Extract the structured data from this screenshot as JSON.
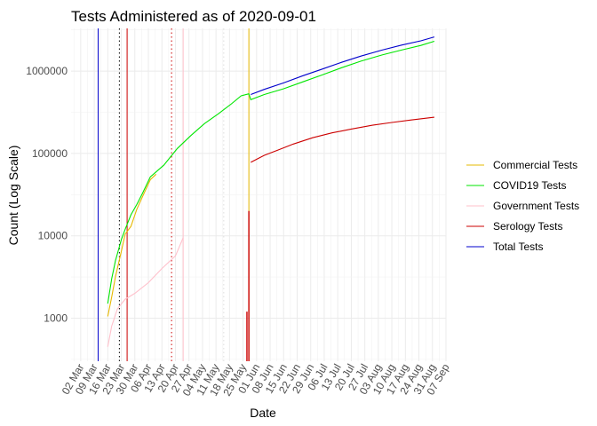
{
  "chart_data": {
    "type": "line",
    "title": "Tests Administered as of 2020-09-01",
    "xlabel": "Date",
    "ylabel": "Count (Log Scale)",
    "y_scale": "log",
    "ylim": [
      300,
      3300000
    ],
    "xlim": [
      "2020-02-26",
      "2020-09-07"
    ],
    "grid": true,
    "legend_position": "right",
    "y_ticks": [
      {
        "value": 1000,
        "label": "1000"
      },
      {
        "value": 10000,
        "label": "10000"
      },
      {
        "value": 100000,
        "label": "100000"
      },
      {
        "value": 1000000,
        "label": "1000000"
      }
    ],
    "x_ticks": [
      {
        "date": "2020-03-02",
        "label": "02 Mar"
      },
      {
        "date": "2020-03-09",
        "label": "09 Mar"
      },
      {
        "date": "2020-03-16",
        "label": "16 Mar"
      },
      {
        "date": "2020-03-23",
        "label": "23 Mar"
      },
      {
        "date": "2020-03-30",
        "label": "30 Mar"
      },
      {
        "date": "2020-04-06",
        "label": "06 Apr"
      },
      {
        "date": "2020-04-13",
        "label": "13 Apr"
      },
      {
        "date": "2020-04-20",
        "label": "20 Apr"
      },
      {
        "date": "2020-04-27",
        "label": "27 Apr"
      },
      {
        "date": "2020-05-04",
        "label": "04 May"
      },
      {
        "date": "2020-05-11",
        "label": "11 May"
      },
      {
        "date": "2020-05-18",
        "label": "18 May"
      },
      {
        "date": "2020-05-25",
        "label": "25 May"
      },
      {
        "date": "2020-06-01",
        "label": "01 Jun"
      },
      {
        "date": "2020-06-08",
        "label": "08 Jun"
      },
      {
        "date": "2020-06-15",
        "label": "15 Jun"
      },
      {
        "date": "2020-06-22",
        "label": "22 Jun"
      },
      {
        "date": "2020-06-29",
        "label": "29 Jun"
      },
      {
        "date": "2020-07-06",
        "label": "06 Jul"
      },
      {
        "date": "2020-07-13",
        "label": "13 Jul"
      },
      {
        "date": "2020-07-20",
        "label": "20 Jul"
      },
      {
        "date": "2020-07-27",
        "label": "27 Jul"
      },
      {
        "date": "2020-08-03",
        "label": "03 Aug"
      },
      {
        "date": "2020-08-10",
        "label": "10 Aug"
      },
      {
        "date": "2020-08-17",
        "label": "17 Aug"
      },
      {
        "date": "2020-08-24",
        "label": "24 Aug"
      },
      {
        "date": "2020-08-31",
        "label": "31 Aug"
      },
      {
        "date": "2020-09-07",
        "label": "07 Sep"
      }
    ],
    "series": [
      {
        "name": "Commercial Tests",
        "color": "#e6b800",
        "x": [
          "2020-03-16",
          "2020-03-18",
          "2020-03-20",
          "2020-03-23",
          "2020-03-25",
          "2020-03-28",
          "2020-03-31",
          "2020-04-03",
          "2020-04-07",
          "2020-04-10"
        ],
        "y": [
          1050,
          1800,
          3200,
          6500,
          10500,
          13000,
          21000,
          30000,
          48000,
          56000
        ]
      },
      {
        "name": "COVID19 Tests",
        "color": "#00e600",
        "x": [
          "2020-03-16",
          "2020-03-18",
          "2020-03-20",
          "2020-03-23",
          "2020-03-25",
          "2020-03-28",
          "2020-03-31",
          "2020-04-03",
          "2020-04-07",
          "2020-04-14",
          "2020-04-21",
          "2020-04-28",
          "2020-05-05",
          "2020-05-12",
          "2020-05-19",
          "2020-05-24",
          "2020-05-28",
          "2020-05-29",
          "2020-06-05",
          "2020-06-15",
          "2020-06-25",
          "2020-07-05",
          "2020-07-15",
          "2020-07-25",
          "2020-08-05",
          "2020-08-15",
          "2020-08-25",
          "2020-09-01"
        ],
        "y": [
          1500,
          3000,
          5000,
          9000,
          12000,
          18000,
          24000,
          33000,
          52000,
          72000,
          115000,
          165000,
          230000,
          300000,
          400000,
          500000,
          530000,
          450000,
          520000,
          610000,
          740000,
          900000,
          1100000,
          1320000,
          1570000,
          1800000,
          2050000,
          2300000
        ]
      },
      {
        "name": "Government Tests",
        "color": "#ffc0cb",
        "x": [
          "2020-03-16",
          "2020-03-18",
          "2020-03-21",
          "2020-03-25",
          "2020-03-30",
          "2020-04-06",
          "2020-04-13",
          "2020-04-20",
          "2020-04-24"
        ],
        "y": [
          450,
          800,
          1300,
          1700,
          2000,
          2700,
          4000,
          5700,
          9500
        ]
      },
      {
        "name": "Serology Tests",
        "color": "#cc0000",
        "x": [
          "2020-05-29",
          "2020-06-01",
          "2020-06-05",
          "2020-06-12",
          "2020-06-20",
          "2020-06-30",
          "2020-07-10",
          "2020-07-20",
          "2020-07-31",
          "2020-08-10",
          "2020-08-20",
          "2020-09-01"
        ],
        "y": [
          78000,
          85000,
          95000,
          110000,
          130000,
          155000,
          178000,
          198000,
          220000,
          238000,
          255000,
          275000
        ]
      },
      {
        "name": "Total Tests",
        "color": "#0000cc",
        "x": [
          "2020-05-29",
          "2020-06-05",
          "2020-06-15",
          "2020-06-25",
          "2020-07-05",
          "2020-07-15",
          "2020-07-25",
          "2020-08-05",
          "2020-08-15",
          "2020-08-25",
          "2020-09-01"
        ],
        "y": [
          520000,
          600000,
          720000,
          880000,
          1060000,
          1280000,
          1520000,
          1800000,
          2070000,
          2330000,
          2600000
        ]
      }
    ],
    "event_lines": [
      {
        "date": "2020-03-11",
        "color": "#0000cc",
        "style": "solid"
      },
      {
        "date": "2020-03-22",
        "color": "#000000",
        "style": "dotted"
      },
      {
        "date": "2020-03-26",
        "color": "#cc0000",
        "style": "solid"
      },
      {
        "date": "2020-04-18",
        "color": "#cc0000",
        "style": "dotted"
      },
      {
        "date": "2020-04-24",
        "color": "#ffc0cb",
        "style": "solid"
      },
      {
        "date": "2020-05-15",
        "color": "#dddddd",
        "style": "dotted"
      },
      {
        "date": "2020-05-28",
        "color": "#e6b800",
        "style": "solid"
      }
    ],
    "spikes": [
      {
        "date": "2020-05-28",
        "from": 300,
        "to": 20000,
        "color": "#cc0000"
      },
      {
        "date": "2020-05-27",
        "from": 300,
        "to": 1200,
        "color": "#cc0000"
      }
    ]
  }
}
